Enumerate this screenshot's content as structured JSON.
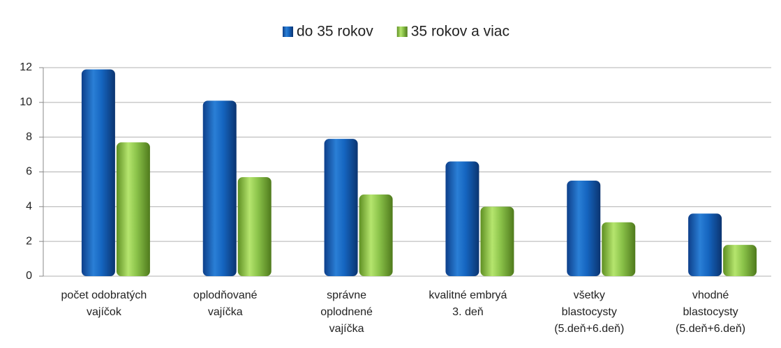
{
  "chart_data": {
    "type": "bar",
    "categories": [
      "počet odobratých\nvajíčok",
      "oplodňované\nvajíčka",
      "správne\noplodnené\nvajíčka",
      "kvalitné embryá\n3. deň",
      "všetky\nblastocysty\n(5.deň+6.deň)",
      "vhodné\nblastocysty\n(5.deň+6.deň)"
    ],
    "series": [
      {
        "name": "do 35 rokov",
        "color": "#1565c0",
        "values": [
          11.9,
          10.1,
          7.9,
          6.6,
          5.5,
          3.6
        ]
      },
      {
        "name": "35 rokov a viac",
        "color": "#8bc34a",
        "values": [
          7.7,
          5.7,
          4.7,
          4.0,
          3.1,
          1.8
        ]
      }
    ],
    "ylim": [
      0,
      12
    ],
    "yticks": [
      0,
      2,
      4,
      6,
      8,
      10,
      12
    ],
    "grid": true,
    "legend": "top"
  }
}
